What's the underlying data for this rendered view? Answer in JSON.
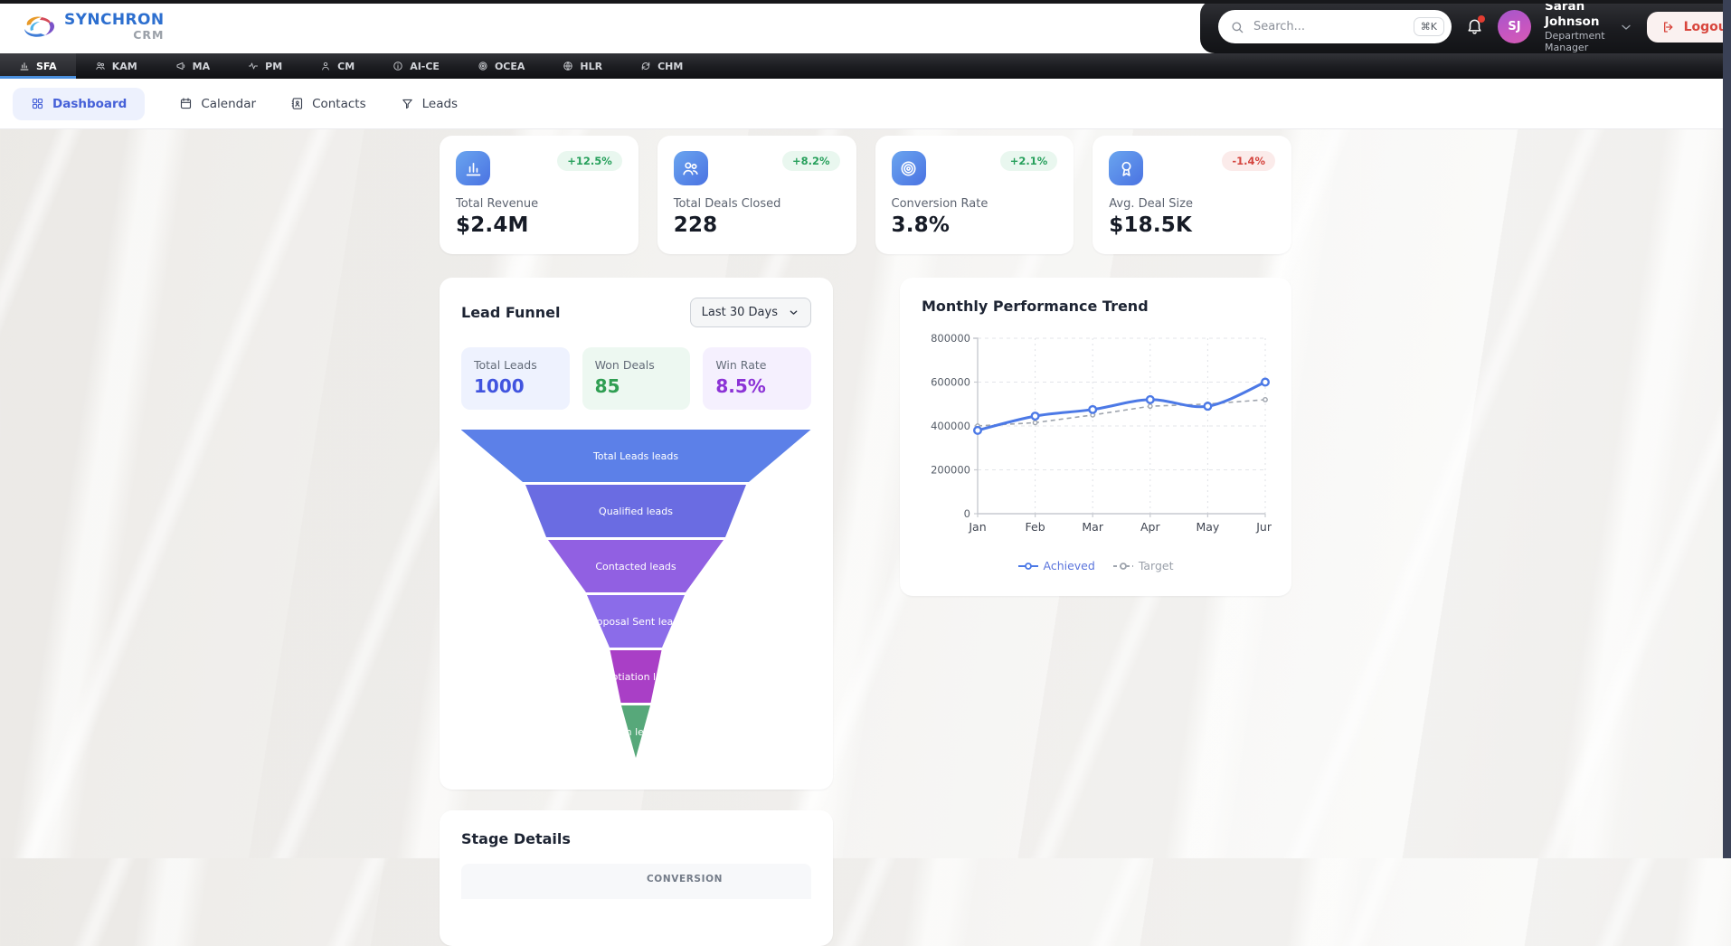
{
  "header": {
    "brand": {
      "name": "SYNCHRON",
      "suffix": "CRM"
    },
    "search": {
      "placeholder": "Search...",
      "shortcut": "⌘K"
    },
    "notifications": {
      "unread": true
    },
    "user": {
      "initials": "SJ",
      "name": "Sarah Johnson",
      "role": "Department Manager"
    },
    "logout": {
      "label": "Logout"
    }
  },
  "nav": {
    "tabs": [
      {
        "label": "SFA",
        "icon": "bar-chart-icon",
        "active": true
      },
      {
        "label": "KAM",
        "icon": "users-icon"
      },
      {
        "label": "MA",
        "icon": "megaphone-icon"
      },
      {
        "label": "PM",
        "icon": "activity-icon"
      },
      {
        "label": "CM",
        "icon": "user-icon"
      },
      {
        "label": "AI-CE",
        "icon": "info-icon"
      },
      {
        "label": "OCEA",
        "icon": "target-icon"
      },
      {
        "label": "HLR",
        "icon": "globe-icon"
      },
      {
        "label": "CHM",
        "icon": "refresh-icon"
      }
    ]
  },
  "subnav": {
    "items": [
      {
        "label": "Dashboard",
        "icon": "grid-icon",
        "active": true
      },
      {
        "label": "Calendar",
        "icon": "calendar-icon"
      },
      {
        "label": "Contacts",
        "icon": "contacts-icon"
      },
      {
        "label": "Leads",
        "icon": "filter-icon"
      }
    ]
  },
  "kpis": [
    {
      "label": "Total Revenue",
      "value": "$2.4M",
      "change": "+12.5%",
      "direction": "up",
      "icon": "bar-chart-icon"
    },
    {
      "label": "Total Deals Closed",
      "value": "228",
      "change": "+8.2%",
      "direction": "up",
      "icon": "users-icon"
    },
    {
      "label": "Conversion Rate",
      "value": "3.8%",
      "change": "+2.1%",
      "direction": "up",
      "icon": "target-icon"
    },
    {
      "label": "Avg. Deal Size",
      "value": "$18.5K",
      "change": "-1.4%",
      "direction": "down",
      "icon": "award-icon"
    }
  ],
  "funnel_panel": {
    "title": "Lead Funnel",
    "range_selector": {
      "value": "Last 30 Days"
    },
    "stats": [
      {
        "label": "Total Leads",
        "value": "1000",
        "text_color": "#4154df",
        "bg": "#eef2fe"
      },
      {
        "label": "Won Deals",
        "value": "85",
        "text_color": "#2f9e52",
        "bg": "#edf8f1"
      },
      {
        "label": "Win Rate",
        "value": "8.5%",
        "text_color": "#8c33d6",
        "bg": "#f5f0fe"
      }
    ]
  },
  "trend_panel": {
    "title": "Monthly Performance Trend"
  },
  "stage_panel": {
    "title": "Stage Details",
    "visible_column_header": "CONVERSION"
  },
  "chart_data": [
    {
      "type": "funnel",
      "title": "Lead Funnel",
      "stages": [
        "Total Leads leads",
        "Qualified leads",
        "Contacted leads",
        "Proposal Sent leads",
        "Negotiation leads",
        "Won leads"
      ],
      "colors": [
        "#5c80e8",
        "#6a6ce2",
        "#9160e2",
        "#8b6ce9",
        "#a93fc6",
        "#57a87a"
      ],
      "label_color": "#ffffff"
    },
    {
      "type": "line",
      "title": "Monthly Performance Trend",
      "x": [
        "Jan",
        "Feb",
        "Mar",
        "Apr",
        "May",
        "Jun"
      ],
      "series": [
        {
          "name": "Achieved",
          "color": "#4c79e6",
          "style": "solid",
          "values": [
            380000,
            445000,
            475000,
            520000,
            490000,
            600000
          ]
        },
        {
          "name": "Target",
          "color": "#9fa5ae",
          "style": "dashed",
          "values": [
            400000,
            415000,
            450000,
            490000,
            500000,
            520000
          ]
        }
      ],
      "ylim": [
        0,
        800000
      ],
      "yticks": [
        0,
        200000,
        400000,
        600000,
        800000
      ],
      "grid": true,
      "legend_position": "bottom"
    }
  ]
}
